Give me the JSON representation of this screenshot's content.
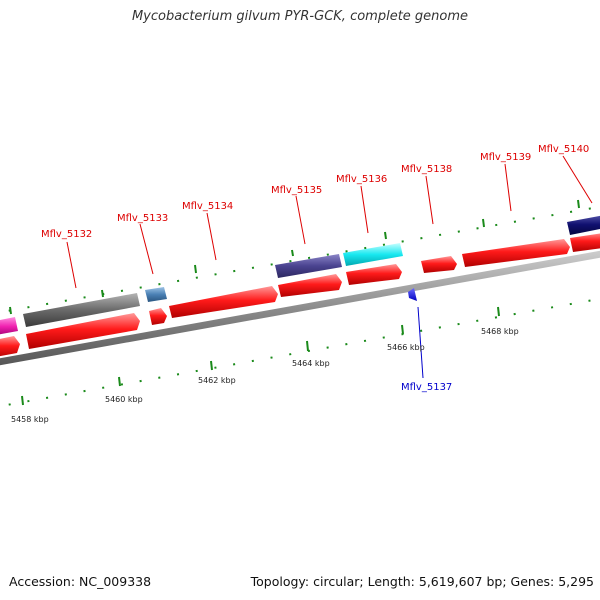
{
  "title": "Mycobacterium gilvum PYR-GCK, complete genome",
  "footer": {
    "accession": "Accession: NC_009338",
    "summary": "Topology: circular; Length: 5,619,607 bp; Genes: 5,295"
  },
  "colors": {
    "forward_cds": "#ff0000",
    "reverse_cds_label": "#0000cc",
    "backbone": "#8c8c8c",
    "tick": "#1a8a1a"
  },
  "scale_labels": [
    {
      "text": "5458 kbp",
      "kbp": 5458
    },
    {
      "text": "5460 kbp",
      "kbp": 5460
    },
    {
      "text": "5462 kbp",
      "kbp": 5462
    },
    {
      "text": "5464 kbp",
      "kbp": 5464
    },
    {
      "text": "5466 kbp",
      "kbp": 5466
    },
    {
      "text": "5468 kbp",
      "kbp": 5468
    }
  ],
  "gene_labels": [
    {
      "id": "Mflv_5132",
      "strand": "forward"
    },
    {
      "id": "Mflv_5133",
      "strand": "forward"
    },
    {
      "id": "Mflv_5134",
      "strand": "forward"
    },
    {
      "id": "Mflv_5135",
      "strand": "forward"
    },
    {
      "id": "Mflv_5136",
      "strand": "forward"
    },
    {
      "id": "Mflv_5137",
      "strand": "reverse"
    },
    {
      "id": "Mflv_5138",
      "strand": "forward"
    },
    {
      "id": "Mflv_5139",
      "strand": "forward"
    },
    {
      "id": "Mflv_5140",
      "strand": "forward"
    }
  ]
}
